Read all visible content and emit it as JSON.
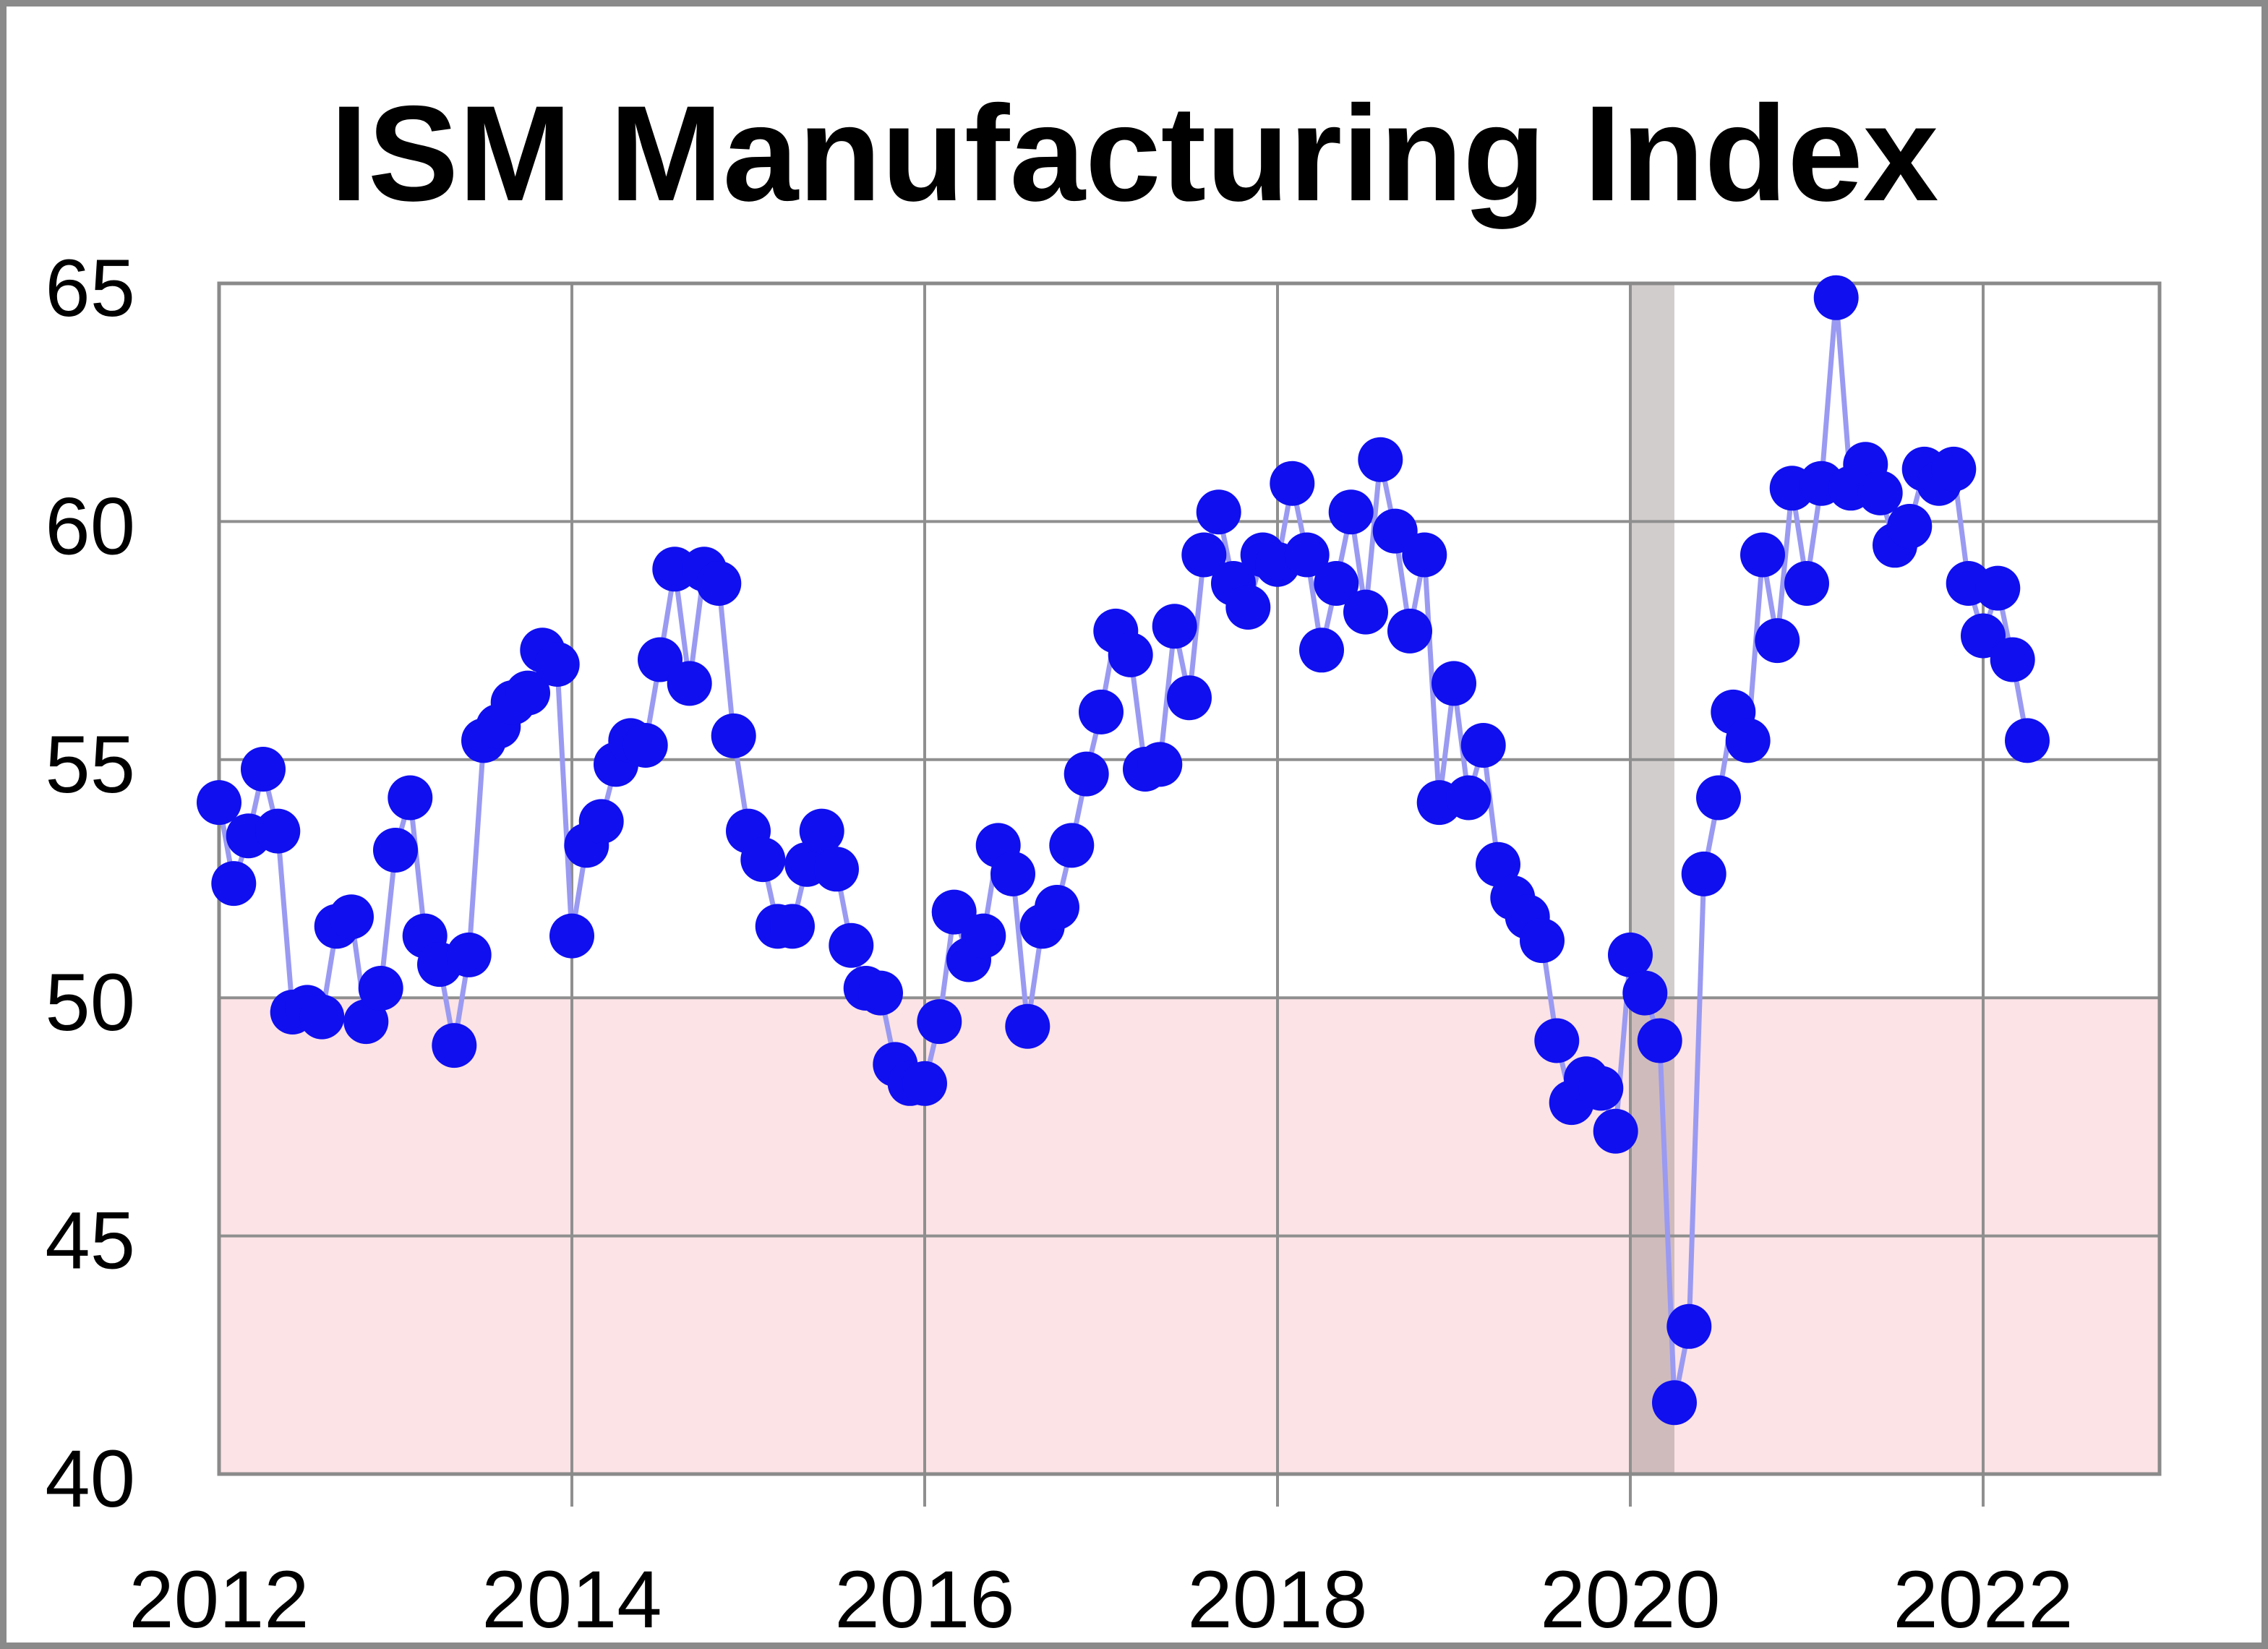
{
  "chart_data": {
    "type": "line",
    "title": "ISM Manufacturing Index",
    "series": [
      {
        "name": "ISM Manufacturing Index (monthly)",
        "start": "2012-01",
        "frequency": "monthly",
        "values": [
          54.1,
          52.4,
          53.4,
          54.8,
          53.5,
          49.7,
          49.8,
          49.6,
          51.5,
          51.7,
          49.5,
          50.2,
          53.1,
          54.2,
          51.3,
          50.7,
          49.0,
          50.9,
          55.4,
          55.7,
          56.2,
          56.4,
          57.3,
          57.0,
          51.3,
          53.2,
          53.7,
          54.9,
          55.4,
          55.3,
          57.1,
          59.0,
          56.6,
          59.0,
          58.7,
          55.5,
          53.5,
          52.9,
          51.5,
          51.5,
          52.8,
          53.5,
          52.7,
          51.1,
          50.2,
          50.1,
          48.6,
          48.2,
          48.2,
          49.5,
          51.8,
          50.8,
          51.3,
          53.2,
          52.6,
          49.4,
          51.5,
          51.9,
          53.2,
          54.7,
          56.0,
          57.7,
          57.2,
          54.8,
          54.9,
          57.8,
          56.3,
          59.3,
          60.2,
          58.7,
          58.2,
          59.3,
          59.1,
          60.8,
          59.3,
          57.3,
          58.7,
          60.2,
          58.1,
          61.3,
          59.8,
          57.7,
          59.3,
          54.1,
          56.6,
          54.2,
          55.3,
          52.8,
          52.1,
          51.7,
          51.2,
          49.1,
          47.8,
          48.3,
          48.1,
          47.2,
          50.9,
          50.1,
          49.1,
          41.5,
          43.1,
          52.6,
          54.2,
          56.0,
          55.4,
          59.3,
          57.5,
          60.7,
          58.7,
          60.8,
          64.7,
          60.7,
          61.2,
          60.6,
          59.5,
          59.9,
          61.1,
          60.8,
          61.1,
          58.7,
          57.6,
          58.6,
          57.1,
          55.4
        ]
      }
    ],
    "x_ticks": [
      "2012",
      "2014",
      "2016",
      "2018",
      "2020",
      "2022"
    ],
    "y_ticks": [
      "65",
      "60",
      "55",
      "50",
      "45",
      "40"
    ],
    "ylim": [
      40,
      65
    ],
    "xlim_years": [
      2012,
      2023
    ],
    "grid": true,
    "legend": false,
    "below_50_shading": {
      "from": 40,
      "to": 50,
      "color": "#fce3e5"
    },
    "recession_band": {
      "from_year": 2020.0,
      "to_year": 2020.25,
      "color": "rgba(125,112,112,0.35)"
    },
    "colors": {
      "dot": "#0f0ff0",
      "connector_line": "#9a9af2",
      "gridline": "#8f8f8f",
      "plot_border": "#8a8a8a",
      "outer_frame": "#8a8a8a",
      "text": "#000000",
      "background": "#ffffff"
    }
  }
}
